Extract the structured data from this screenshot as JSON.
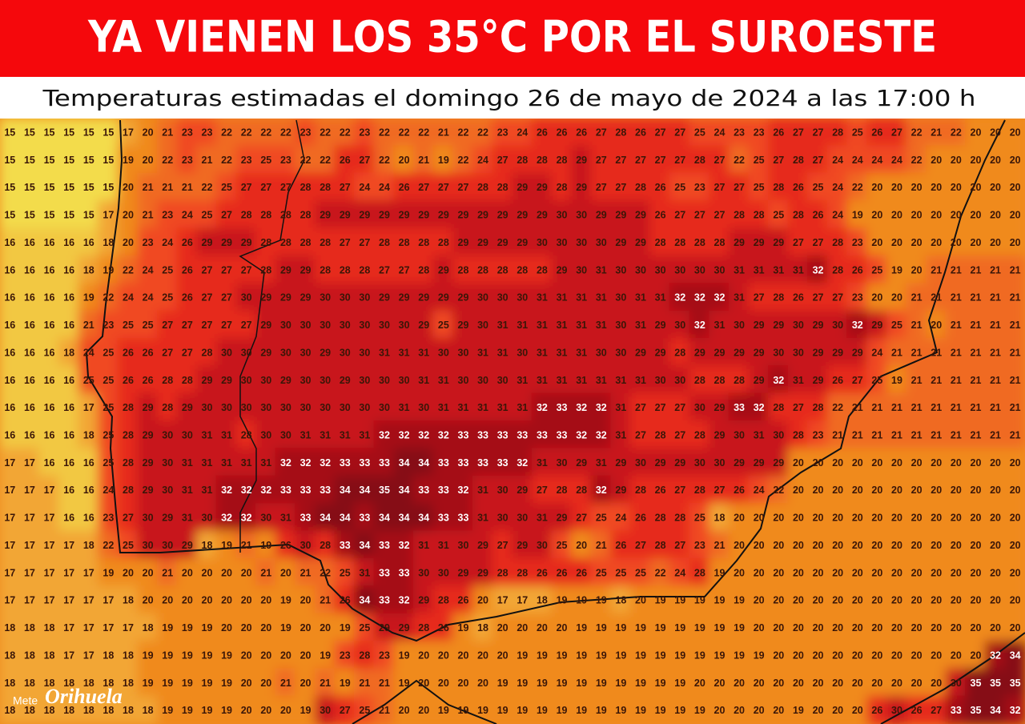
{
  "header": {
    "title": "YA VIENEN LOS 35°C POR EL SUROESTE",
    "subtitle": "Temperaturas estimadas el domingo 26 de mayo de 2024 a las 17:00 h"
  },
  "logo": {
    "prefix": "Mete",
    "name": "Orihuela"
  },
  "grid": [
    [
      15,
      15,
      15,
      15,
      15,
      15,
      17,
      20,
      21,
      23,
      23,
      22,
      22,
      22,
      22,
      23,
      22,
      22,
      23,
      22,
      22,
      22,
      21,
      22,
      22,
      23,
      24,
      26,
      26,
      26,
      27,
      28,
      26,
      27,
      27,
      25,
      24,
      23,
      23,
      26,
      27,
      27,
      28,
      25,
      26,
      27,
      22,
      21,
      22,
      20,
      20,
      20
    ],
    [
      15,
      15,
      15,
      15,
      15,
      15,
      19,
      20,
      22,
      23,
      21,
      22,
      23,
      25,
      23,
      22,
      22,
      26,
      27,
      22,
      20,
      21,
      19,
      22,
      24,
      27,
      28,
      28,
      28,
      29,
      27,
      27,
      27,
      27,
      27,
      28,
      27,
      22,
      25,
      27,
      28,
      27,
      24,
      24,
      24,
      24,
      22,
      20,
      20,
      20,
      20,
      20
    ],
    [
      15,
      15,
      15,
      15,
      15,
      15,
      20,
      21,
      21,
      21,
      22,
      25,
      27,
      27,
      27,
      28,
      28,
      27,
      24,
      24,
      26,
      27,
      27,
      27,
      28,
      28,
      29,
      29,
      28,
      29,
      27,
      27,
      28,
      26,
      25,
      23,
      27,
      27,
      25,
      28,
      26,
      25,
      24,
      22,
      20,
      20,
      20,
      20,
      20,
      20,
      20,
      20
    ],
    [
      15,
      15,
      15,
      15,
      15,
      17,
      20,
      21,
      23,
      24,
      25,
      27,
      28,
      28,
      28,
      28,
      29,
      29,
      29,
      29,
      29,
      29,
      29,
      29,
      29,
      29,
      29,
      29,
      30,
      30,
      29,
      29,
      29,
      26,
      27,
      27,
      27,
      28,
      28,
      25,
      28,
      26,
      24,
      19,
      20,
      20,
      20,
      20,
      20,
      20,
      20,
      20
    ],
    [
      16,
      16,
      16,
      16,
      16,
      18,
      20,
      23,
      24,
      26,
      29,
      29,
      29,
      28,
      28,
      28,
      28,
      27,
      27,
      28,
      28,
      28,
      28,
      29,
      29,
      29,
      29,
      30,
      30,
      30,
      30,
      29,
      29,
      28,
      28,
      28,
      28,
      29,
      29,
      29,
      27,
      27,
      28,
      23,
      20,
      20,
      20,
      20,
      20,
      20,
      20,
      20
    ],
    [
      16,
      16,
      16,
      16,
      18,
      19,
      22,
      24,
      25,
      26,
      27,
      27,
      27,
      28,
      29,
      29,
      28,
      28,
      28,
      27,
      27,
      28,
      29,
      28,
      28,
      28,
      28,
      28,
      29,
      30,
      31,
      30,
      30,
      30,
      30,
      30,
      30,
      31,
      31,
      31,
      31,
      32,
      28,
      26,
      25,
      19,
      20,
      21,
      21,
      21,
      21,
      21
    ],
    [
      16,
      16,
      16,
      16,
      19,
      22,
      24,
      24,
      25,
      26,
      27,
      27,
      30,
      29,
      29,
      29,
      30,
      30,
      30,
      29,
      29,
      29,
      29,
      29,
      30,
      30,
      30,
      31,
      31,
      31,
      31,
      30,
      31,
      31,
      32,
      32,
      32,
      31,
      27,
      28,
      26,
      27,
      27,
      23,
      20,
      20,
      21,
      21,
      21,
      21,
      21,
      21
    ],
    [
      16,
      16,
      16,
      16,
      21,
      23,
      25,
      25,
      27,
      27,
      27,
      27,
      27,
      29,
      30,
      30,
      30,
      30,
      30,
      30,
      30,
      29,
      25,
      29,
      30,
      31,
      31,
      31,
      31,
      31,
      31,
      30,
      31,
      29,
      30,
      32,
      31,
      30,
      29,
      29,
      30,
      29,
      30,
      32,
      29,
      25,
      21,
      20,
      21,
      21,
      21,
      21
    ],
    [
      16,
      16,
      16,
      18,
      24,
      25,
      26,
      26,
      27,
      27,
      28,
      30,
      30,
      29,
      30,
      30,
      29,
      30,
      30,
      31,
      31,
      31,
      30,
      30,
      31,
      31,
      30,
      31,
      31,
      31,
      30,
      30,
      29,
      29,
      28,
      29,
      29,
      29,
      29,
      30,
      30,
      29,
      29,
      29,
      24,
      21,
      21,
      21,
      21,
      21,
      21,
      21
    ],
    [
      16,
      16,
      16,
      16,
      25,
      25,
      26,
      26,
      28,
      28,
      29,
      29,
      30,
      30,
      29,
      30,
      30,
      29,
      30,
      30,
      30,
      31,
      31,
      30,
      30,
      30,
      31,
      31,
      31,
      31,
      31,
      31,
      31,
      30,
      30,
      28,
      28,
      28,
      29,
      32,
      31,
      29,
      26,
      27,
      25,
      19,
      21,
      21,
      21,
      21,
      21,
      21
    ],
    [
      16,
      16,
      16,
      16,
      17,
      25,
      28,
      29,
      28,
      29,
      30,
      30,
      30,
      30,
      30,
      30,
      30,
      30,
      30,
      30,
      31,
      30,
      31,
      31,
      31,
      31,
      31,
      32,
      33,
      32,
      32,
      31,
      27,
      27,
      27,
      30,
      29,
      33,
      32,
      28,
      27,
      28,
      22,
      21,
      21,
      21,
      21,
      21,
      21,
      21,
      21,
      21
    ],
    [
      16,
      16,
      16,
      16,
      18,
      25,
      28,
      29,
      30,
      30,
      31,
      31,
      28,
      30,
      30,
      31,
      31,
      31,
      31,
      32,
      32,
      32,
      32,
      33,
      33,
      33,
      33,
      33,
      33,
      32,
      32,
      31,
      27,
      28,
      27,
      28,
      29,
      30,
      31,
      30,
      28,
      23,
      21,
      21,
      21,
      21,
      21,
      21,
      21,
      21,
      21,
      21
    ],
    [
      17,
      17,
      16,
      16,
      16,
      25,
      28,
      29,
      30,
      31,
      31,
      31,
      31,
      31,
      32,
      32,
      32,
      33,
      33,
      33,
      34,
      34,
      33,
      33,
      33,
      33,
      32,
      31,
      30,
      29,
      31,
      29,
      30,
      29,
      29,
      30,
      30,
      29,
      29,
      29,
      20,
      20,
      20,
      20,
      20,
      20,
      20,
      20,
      20,
      20,
      20,
      20
    ],
    [
      17,
      17,
      17,
      16,
      16,
      24,
      28,
      29,
      30,
      31,
      31,
      32,
      32,
      32,
      33,
      33,
      33,
      34,
      34,
      35,
      34,
      33,
      33,
      32,
      31,
      30,
      29,
      27,
      28,
      28,
      32,
      29,
      28,
      26,
      27,
      28,
      27,
      26,
      24,
      22,
      20,
      20,
      20,
      20,
      20,
      20,
      20,
      20,
      20,
      20,
      20,
      20
    ],
    [
      17,
      17,
      17,
      16,
      16,
      23,
      27,
      30,
      29,
      31,
      30,
      32,
      32,
      30,
      31,
      33,
      34,
      34,
      33,
      34,
      34,
      34,
      33,
      33,
      31,
      30,
      30,
      31,
      29,
      27,
      25,
      24,
      26,
      28,
      28,
      25,
      18,
      20,
      20,
      20,
      20,
      20,
      20,
      20,
      20,
      20,
      20,
      20,
      20,
      20,
      20,
      20
    ],
    [
      17,
      17,
      17,
      17,
      18,
      22,
      25,
      30,
      30,
      29,
      18,
      19,
      21,
      19,
      26,
      30,
      28,
      33,
      34,
      33,
      32,
      31,
      31,
      30,
      29,
      27,
      29,
      30,
      25,
      20,
      21,
      26,
      27,
      28,
      27,
      23,
      21,
      20,
      20,
      20,
      20,
      20,
      20,
      20,
      20,
      20,
      20,
      20,
      20,
      20,
      20,
      20
    ],
    [
      17,
      17,
      17,
      17,
      17,
      19,
      20,
      20,
      21,
      20,
      20,
      20,
      20,
      21,
      20,
      21,
      22,
      25,
      31,
      33,
      33,
      30,
      30,
      29,
      29,
      28,
      28,
      26,
      26,
      26,
      25,
      25,
      25,
      22,
      24,
      28,
      19,
      20,
      20,
      20,
      20,
      20,
      20,
      20,
      20,
      20,
      20,
      20,
      20,
      20,
      20,
      20
    ],
    [
      17,
      17,
      17,
      17,
      17,
      17,
      18,
      20,
      20,
      20,
      20,
      20,
      20,
      20,
      19,
      20,
      21,
      26,
      34,
      33,
      32,
      29,
      28,
      26,
      20,
      17,
      17,
      18,
      19,
      19,
      19,
      18,
      20,
      19,
      19,
      19,
      19,
      19,
      20,
      20,
      20,
      20,
      20,
      20,
      20,
      20,
      20,
      20,
      20,
      20,
      20,
      20
    ],
    [
      18,
      18,
      18,
      17,
      17,
      17,
      17,
      18,
      19,
      19,
      19,
      20,
      20,
      20,
      19,
      20,
      20,
      19,
      25,
      29,
      29,
      28,
      26,
      19,
      18,
      20,
      20,
      20,
      20,
      19,
      19,
      19,
      19,
      19,
      19,
      19,
      19,
      19,
      20,
      20,
      20,
      20,
      20,
      20,
      20,
      20,
      20,
      20,
      20,
      20,
      20,
      20
    ],
    [
      18,
      18,
      18,
      17,
      17,
      18,
      18,
      19,
      19,
      19,
      19,
      19,
      20,
      20,
      20,
      20,
      19,
      23,
      28,
      23,
      19,
      20,
      20,
      20,
      20,
      20,
      19,
      19,
      19,
      19,
      19,
      19,
      19,
      19,
      19,
      19,
      19,
      19,
      19,
      20,
      20,
      20,
      20,
      20,
      20,
      20,
      20,
      20,
      20,
      20,
      32,
      34
    ],
    [
      18,
      18,
      18,
      18,
      18,
      18,
      18,
      19,
      19,
      19,
      19,
      19,
      20,
      20,
      21,
      20,
      21,
      19,
      21,
      21,
      19,
      20,
      20,
      20,
      20,
      19,
      19,
      19,
      19,
      19,
      19,
      19,
      19,
      19,
      19,
      20,
      20,
      20,
      20,
      20,
      20,
      20,
      20,
      20,
      20,
      20,
      20,
      20,
      30,
      35,
      35,
      35
    ],
    [
      18,
      18,
      18,
      18,
      18,
      18,
      18,
      18,
      19,
      19,
      19,
      19,
      20,
      20,
      20,
      19,
      30,
      27,
      25,
      21,
      20,
      20,
      19,
      19,
      19,
      19,
      19,
      19,
      19,
      19,
      19,
      19,
      19,
      19,
      19,
      19,
      20,
      20,
      20,
      20,
      19,
      20,
      20,
      20,
      26,
      30,
      26,
      27,
      33,
      35,
      34,
      32
    ]
  ]
}
